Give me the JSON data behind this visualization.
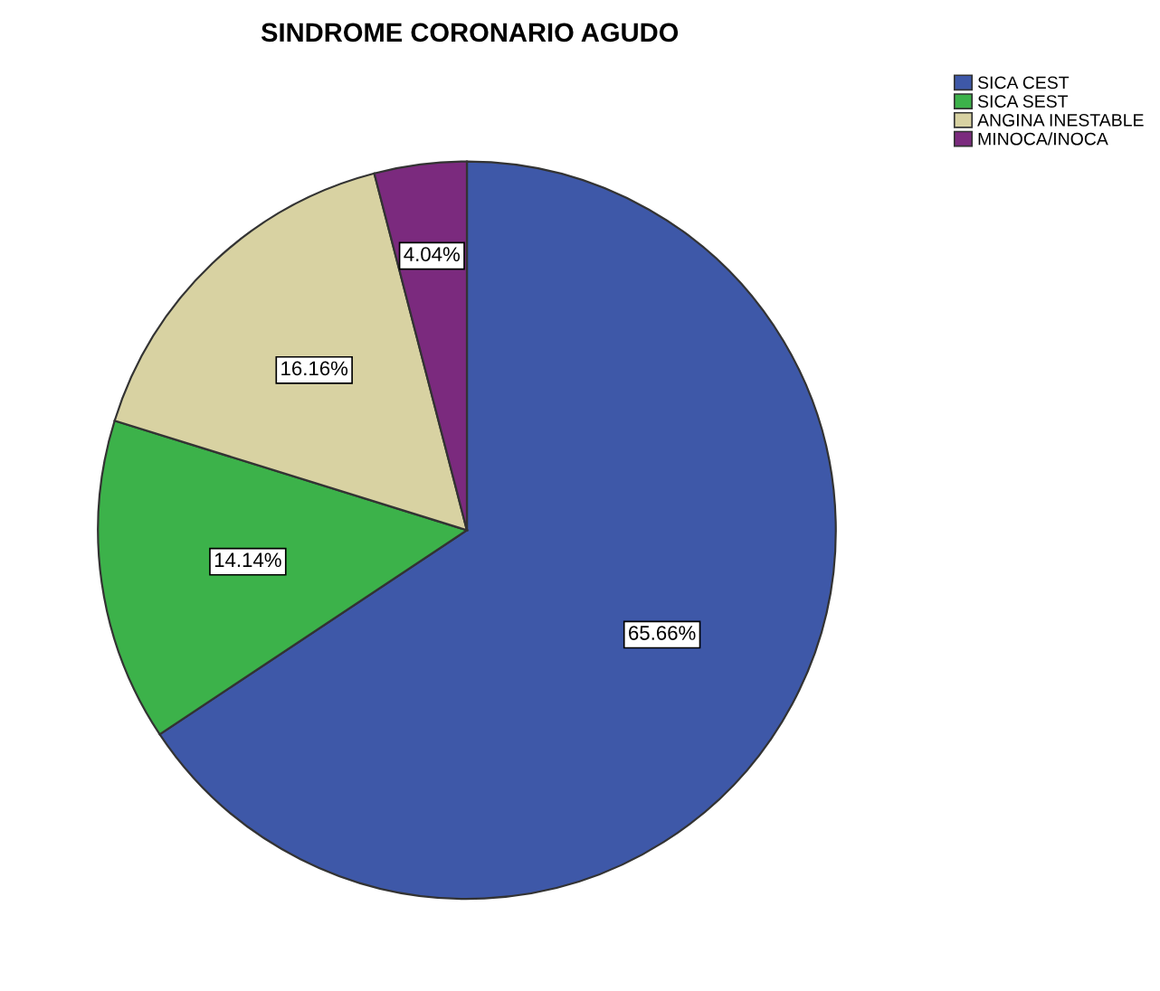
{
  "chart_data": {
    "type": "pie",
    "title": "SINDROME CORONARIO AGUDO",
    "categories": [
      "SICA CEST",
      "SICA SEST",
      "ANGINA INESTABLE",
      "MINOCA/INOCA"
    ],
    "values": [
      65.66,
      14.14,
      16.16,
      4.04
    ],
    "colors": [
      "#3e58a8",
      "#3cb24a",
      "#d8d2a2",
      "#7b2a7e"
    ],
    "value_labels": [
      "65.66%",
      "14.14%",
      "16.16%",
      "4.04%"
    ],
    "legend": "top right"
  }
}
